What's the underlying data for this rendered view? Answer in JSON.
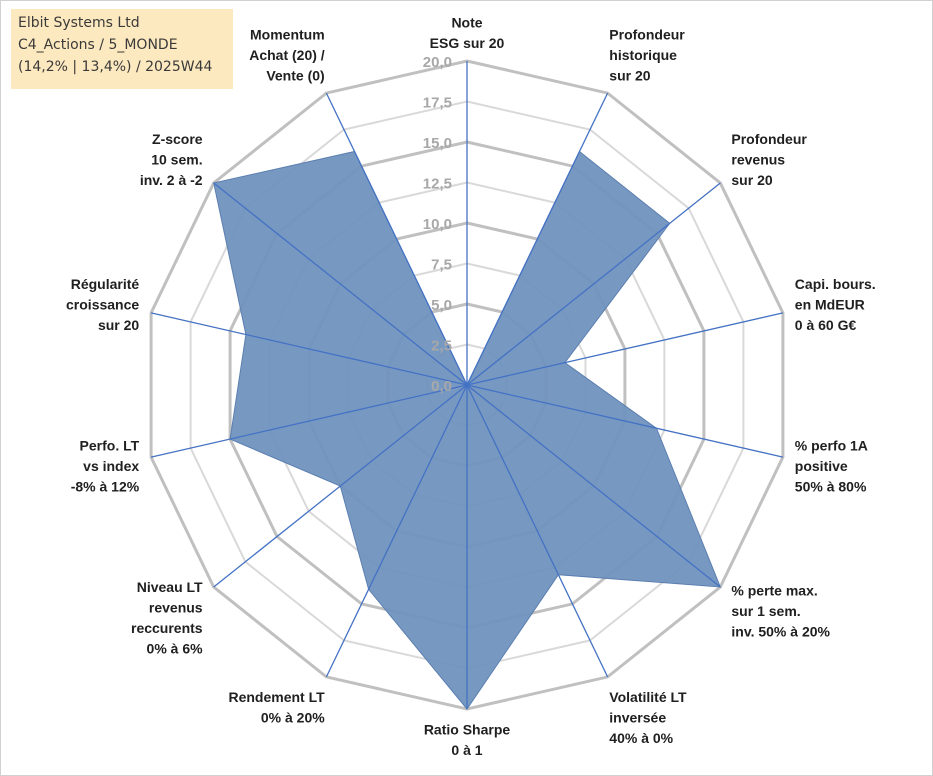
{
  "info": {
    "line1": "Elbit Systems Ltd",
    "line2": "C4_Actions / 5_MONDE",
    "line3": "(14,2% | 13,4%) / 2025W44"
  },
  "colors": {
    "fill": "#7092be",
    "fill_stroke": "#5b7fb0",
    "spoke": "#4472c4",
    "grid_major": "#c0c0c0",
    "grid_minor": "#d9d9d9"
  },
  "chart_data": {
    "type": "radar",
    "title": "",
    "rmin": 0,
    "rmax": 20,
    "ticks": [
      "0,0",
      "2,5",
      "5,0",
      "7,5",
      "10,0",
      "12,5",
      "15,0",
      "17,5",
      "20,0"
    ],
    "axes": [
      {
        "lines": [
          "Note",
          "ESG sur 20"
        ],
        "value": 0
      },
      {
        "lines": [
          "Profondeur",
          "historique",
          "sur 20"
        ],
        "value": 16
      },
      {
        "lines": [
          "Profondeur",
          "revenus",
          "sur 20"
        ],
        "value": 16
      },
      {
        "lines": [
          "Capi. bours.",
          "en MdEUR",
          "0 à 60 G€"
        ],
        "value": 6.2
      },
      {
        "lines": [
          "% perfo 1A",
          "positive",
          "50% à 80%"
        ],
        "value": 12
      },
      {
        "lines": [
          "% perte max.",
          "sur 1 sem.",
          "inv. 50% à 20%"
        ],
        "value": 20
      },
      {
        "lines": [
          "Volatilité LT",
          "inversée",
          "40% à 0%"
        ],
        "value": 13
      },
      {
        "lines": [
          "Ratio Sharpe",
          "0 à 1"
        ],
        "value": 20
      },
      {
        "lines": [
          "Rendement LT",
          "0% à 20%"
        ],
        "value": 14
      },
      {
        "lines": [
          "Niveau LT",
          "revenus",
          "reccurents",
          "0% à 6%"
        ],
        "value": 10
      },
      {
        "lines": [
          "Perfo. LT",
          "vs index",
          "-8% à 12%"
        ],
        "value": 15
      },
      {
        "lines": [
          "Régularité",
          "croissance",
          "sur 20"
        ],
        "value": 14
      },
      {
        "lines": [
          "Z-score",
          "10 sem.",
          "inv. 2 à -2"
        ],
        "value": 20
      },
      {
        "lines": [
          "Momentum",
          "Achat (20) /",
          "Vente (0)"
        ],
        "value": 16
      }
    ]
  }
}
